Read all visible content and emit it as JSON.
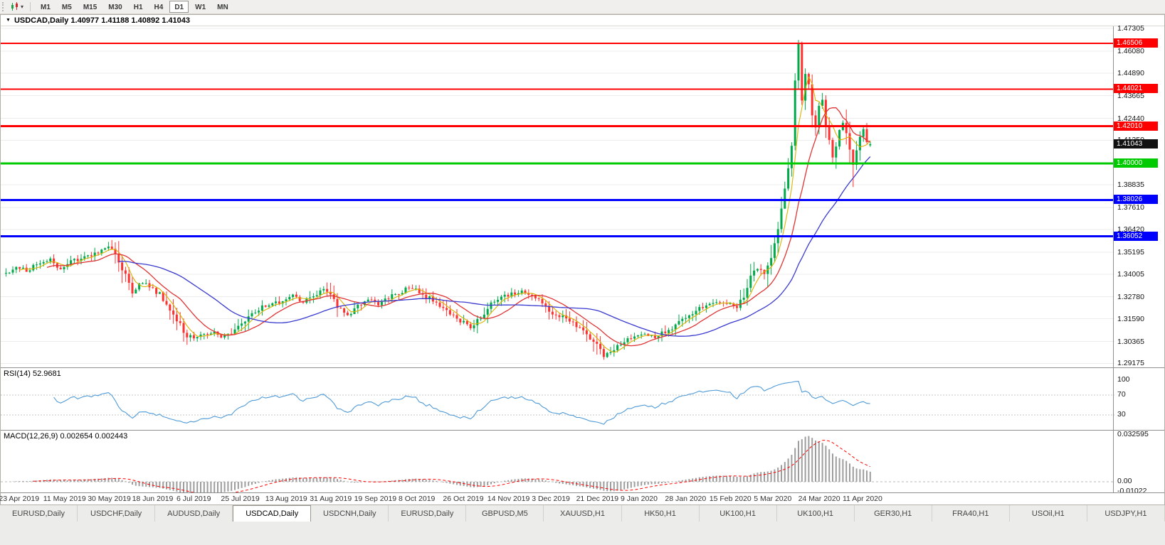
{
  "toolbar": {
    "chart_type_icon": "candlestick-chart-icon",
    "timeframes": [
      "M1",
      "M5",
      "M15",
      "M30",
      "H1",
      "H4",
      "D1",
      "W1",
      "MN"
    ],
    "active_timeframe": "D1"
  },
  "chart": {
    "title": "USDCAD,Daily 1.40977 1.41188 1.40892 1.41043",
    "symbol": "USDCAD",
    "period": "Daily",
    "open": "1.40977",
    "high": "1.41188",
    "low": "1.40892",
    "close": "1.41043",
    "current_price": "1.41043"
  },
  "price_axis": {
    "ticks": [
      {
        "label": "1.47305",
        "value": 1.47305
      },
      {
        "label": "1.46080",
        "value": 1.4608
      },
      {
        "label": "1.44890",
        "value": 1.4489
      },
      {
        "label": "1.43665",
        "value": 1.43665
      },
      {
        "label": "1.42440",
        "value": 1.4244
      },
      {
        "label": "1.41250",
        "value": 1.4125
      },
      {
        "label": "",
        "value": 1.40025
      },
      {
        "label": "1.38835",
        "value": 1.38835
      },
      {
        "label": "1.37610",
        "value": 1.3761
      },
      {
        "label": "1.36420",
        "value": 1.3642
      },
      {
        "label": "1.35195",
        "value": 1.35195
      },
      {
        "label": "1.34005",
        "value": 1.34005
      },
      {
        "label": "1.32780",
        "value": 1.3278
      },
      {
        "label": "1.31590",
        "value": 1.3159
      },
      {
        "label": "1.30365",
        "value": 1.30365
      },
      {
        "label": "1.29175",
        "value": 1.29175
      }
    ]
  },
  "horizontal_lines": [
    {
      "price": 1.46506,
      "label": "1.46506",
      "color": "#ff0000",
      "width": 2
    },
    {
      "price": 1.44021,
      "label": "1.44021",
      "color": "#ff0000",
      "width": 2
    },
    {
      "price": 1.4201,
      "label": "1.42010",
      "color": "#ff0000",
      "width": 3
    },
    {
      "price": 1.4,
      "label": "1.40000",
      "color": "#00ca00",
      "width": 3
    },
    {
      "price": 1.38026,
      "label": "1.38026",
      "color": "#0000ff",
      "width": 3
    },
    {
      "price": 1.36052,
      "label": "1.36052",
      "color": "#0000ff",
      "width": 3
    }
  ],
  "rsi": {
    "label": "RSI(14) 52.9681",
    "value": 52.9681,
    "period": 14,
    "ticks": [
      {
        "label": "100",
        "value": 100
      },
      {
        "label": "70",
        "value": 70
      },
      {
        "label": "30",
        "value": 30
      }
    ],
    "levels": [
      70,
      30
    ]
  },
  "macd": {
    "label": "MACD(12,26,9) 0.002654 0.002443",
    "main_value": 0.002654,
    "signal_value": 0.002443,
    "params": "12,26,9",
    "ticks": [
      {
        "label": "0.032595",
        "value": 0.032595
      },
      {
        "label": "0.00",
        "value": 0
      },
      {
        "label": "-0.01022",
        "value": -0.01022
      }
    ]
  },
  "date_axis": {
    "bar_step": 13,
    "labels": [
      "23 Apr 2019",
      "11 May 2019",
      "30 May 2019",
      "18 Jun 2019",
      "6 Jul 2019",
      "25 Jul 2019",
      "13 Aug 2019",
      "31 Aug 2019",
      "19 Sep 2019",
      "8 Oct 2019",
      "26 Oct 2019",
      "14 Nov 2019",
      "3 Dec 2019",
      "21 Dec 2019",
      "9 Jan 2020",
      "28 Jan 2020",
      "15 Feb 2020",
      "5 Mar 2020",
      "24 Mar 2020",
      "11 Apr 2020"
    ]
  },
  "tabs": {
    "active": "USDCAD,Daily",
    "active_index": 3,
    "items": [
      "EURUSD,Daily",
      "USDCHF,Daily",
      "AUDUSD,Daily",
      "USDCAD,Daily",
      "USDCNH,Daily",
      "EURUSD,Daily",
      "GBPUSD,M5",
      "XAUUSD,H1",
      "HK50,H1",
      "UK100,H1",
      "UK100,H1",
      "GER30,H1",
      "FRA40,H1",
      "USOil,H1",
      "USDJPY,H1"
    ],
    "active_label": "USDCAD,Daily"
  },
  "colors": {
    "candle_up": "#00a94a",
    "candle_down": "#ff3030",
    "ma_fast": "#d9b300",
    "ma_mid": "#e03434",
    "ma_slow": "#3a3ad0",
    "rsi_line": "#4f9ad6",
    "rsi_level": "#c6c6c6",
    "macd_hist": "#9d9d9d",
    "macd_signal": "#ff0000",
    "grid": "#ececec",
    "current_price_bg": "#111111"
  },
  "chart_data": {
    "type": "candlestick",
    "symbol": "USDCAD",
    "timeframe": "Daily",
    "bar_count": 254,
    "price_range": [
      1.2896,
      1.4742
    ],
    "visible_high": 1.4668,
    "visible_low": 1.2918,
    "last_ohlc": [
      1.40977,
      1.41188,
      1.40892,
      1.41043
    ],
    "close_anchors": [
      [
        0,
        1.3405
      ],
      [
        3,
        1.3445
      ],
      [
        6,
        1.342
      ],
      [
        9,
        1.346
      ],
      [
        13,
        1.3475
      ],
      [
        16,
        1.343
      ],
      [
        19,
        1.3465
      ],
      [
        23,
        1.3495
      ],
      [
        26,
        1.3505
      ],
      [
        29,
        1.3548
      ],
      [
        31,
        1.353
      ],
      [
        33,
        1.3468
      ],
      [
        35,
        1.339
      ],
      [
        37,
        1.3302
      ],
      [
        40,
        1.336
      ],
      [
        42,
        1.3338
      ],
      [
        45,
        1.329
      ],
      [
        48,
        1.3218
      ],
      [
        50,
        1.3158
      ],
      [
        52,
        1.3085
      ],
      [
        55,
        1.3048
      ],
      [
        58,
        1.3072
      ],
      [
        61,
        1.309
      ],
      [
        63,
        1.3052
      ],
      [
        65,
        1.307
      ],
      [
        68,
        1.311
      ],
      [
        71,
        1.316
      ],
      [
        74,
        1.3215
      ],
      [
        78,
        1.3235
      ],
      [
        81,
        1.3262
      ],
      [
        84,
        1.329
      ],
      [
        87,
        1.325
      ],
      [
        90,
        1.3285
      ],
      [
        93,
        1.3318
      ],
      [
        95,
        1.329
      ],
      [
        97,
        1.3228
      ],
      [
        100,
        1.318
      ],
      [
        103,
        1.3225
      ],
      [
        106,
        1.3262
      ],
      [
        109,
        1.324
      ],
      [
        112,
        1.3275
      ],
      [
        115,
        1.33
      ],
      [
        118,
        1.333
      ],
      [
        121,
        1.33
      ],
      [
        124,
        1.3268
      ],
      [
        127,
        1.3235
      ],
      [
        130,
        1.3185
      ],
      [
        133,
        1.3145
      ],
      [
        136,
        1.3108
      ],
      [
        139,
        1.3165
      ],
      [
        142,
        1.3235
      ],
      [
        145,
        1.327
      ],
      [
        148,
        1.3295
      ],
      [
        151,
        1.3305
      ],
      [
        154,
        1.328
      ],
      [
        157,
        1.325
      ],
      [
        160,
        1.3185
      ],
      [
        163,
        1.3172
      ],
      [
        166,
        1.313
      ],
      [
        169,
        1.3098
      ],
      [
        171,
        1.306
      ],
      [
        173,
        1.301
      ],
      [
        175,
        1.2962
      ],
      [
        178,
        1.299
      ],
      [
        181,
        1.303
      ],
      [
        184,
        1.306
      ],
      [
        187,
        1.3076
      ],
      [
        190,
        1.306
      ],
      [
        193,
        1.3095
      ],
      [
        196,
        1.3125
      ],
      [
        199,
        1.3165
      ],
      [
        202,
        1.3205
      ],
      [
        205,
        1.3235
      ],
      [
        208,
        1.3252
      ],
      [
        211,
        1.324
      ],
      [
        214,
        1.3228
      ],
      [
        216,
        1.3272
      ],
      [
        218,
        1.339
      ],
      [
        220,
        1.342
      ],
      [
        222,
        1.3405
      ],
      [
        224,
        1.348
      ],
      [
        226,
        1.365
      ],
      [
        228,
        1.385
      ],
      [
        230,
        1.41
      ],
      [
        231,
        1.445
      ],
      [
        232,
        1.464
      ],
      [
        233,
        1.433
      ],
      [
        234,
        1.448
      ],
      [
        235,
        1.442
      ],
      [
        236,
        1.425
      ],
      [
        237,
        1.418
      ],
      [
        238,
        1.431
      ],
      [
        239,
        1.4349
      ],
      [
        240,
        1.42
      ],
      [
        241,
        1.412
      ],
      [
        242,
        1.404
      ],
      [
        243,
        1.409
      ],
      [
        244,
        1.417
      ],
      [
        245,
        1.423
      ],
      [
        246,
        1.415
      ],
      [
        247,
        1.406
      ],
      [
        248,
        1.399
      ],
      [
        249,
        1.407
      ],
      [
        250,
        1.415
      ],
      [
        251,
        1.419
      ],
      [
        252,
        1.411
      ],
      [
        253,
        1.41043
      ]
    ],
    "moving_averages": [
      {
        "name": "fast",
        "period": 5,
        "color": "#d9b300"
      },
      {
        "name": "mid",
        "period": 13,
        "color": "#e03434"
      },
      {
        "name": "slow",
        "period": 34,
        "color": "#3a3ad0"
      }
    ],
    "indicators": [
      "RSI(14)",
      "MACD(12,26,9)"
    ]
  }
}
